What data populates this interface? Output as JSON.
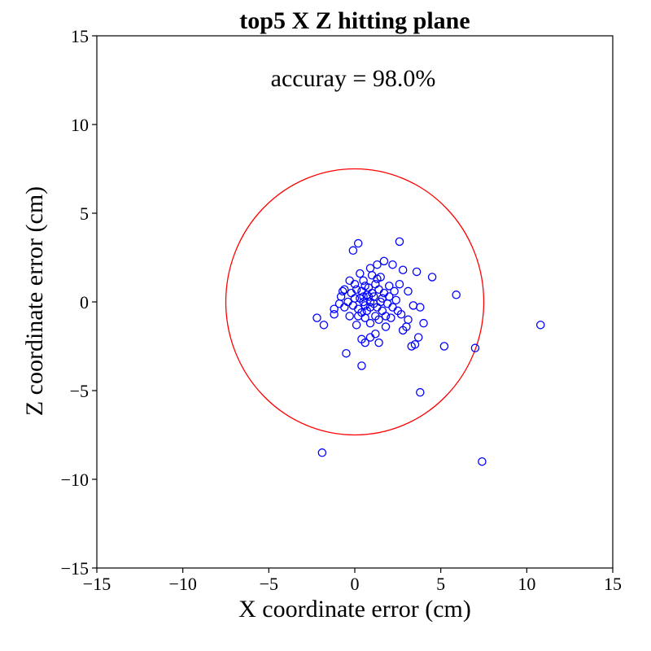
{
  "chart_data": {
    "type": "scatter",
    "title": "top5 X Z hitting plane",
    "annotation": "accuray = 98.0%",
    "xlabel": "X coordinate error (cm)",
    "ylabel": "Z coordinate error (cm)",
    "xlim": [
      -15,
      15
    ],
    "ylim": [
      -15,
      15
    ],
    "xticks": [
      -15,
      -10,
      -5,
      0,
      5,
      10,
      15
    ],
    "yticks": [
      -15,
      -10,
      -5,
      0,
      5,
      10,
      15
    ],
    "xtick_labels": [
      "−15",
      "−10",
      "−5",
      "0",
      "5",
      "10",
      "15"
    ],
    "ytick_labels": [
      "−15",
      "−10",
      "−5",
      "0",
      "5",
      "10",
      "15"
    ],
    "grid": false,
    "circle": {
      "center": [
        0,
        0
      ],
      "radius": 7.5,
      "color": "#ff0000"
    },
    "marker": {
      "shape": "open-circle",
      "color": "#0000ff"
    },
    "points": [
      [
        0.2,
        3.3
      ],
      [
        -0.1,
        2.9
      ],
      [
        2.6,
        3.4
      ],
      [
        1.7,
        2.3
      ],
      [
        2.2,
        2.1
      ],
      [
        1.3,
        2.1
      ],
      [
        0.9,
        1.9
      ],
      [
        2.8,
        1.8
      ],
      [
        3.6,
        1.7
      ],
      [
        4.5,
        1.4
      ],
      [
        0.3,
        1.6
      ],
      [
        1.0,
        1.5
      ],
      [
        1.5,
        1.4
      ],
      [
        0.5,
        1.2
      ],
      [
        -0.3,
        1.2
      ],
      [
        2.6,
        1.0
      ],
      [
        2.0,
        0.9
      ],
      [
        1.2,
        1.0
      ],
      [
        0.6,
        0.9
      ],
      [
        -0.6,
        0.7
      ],
      [
        -0.2,
        0.5
      ],
      [
        0.4,
        0.6
      ],
      [
        1.4,
        0.7
      ],
      [
        2.3,
        0.6
      ],
      [
        3.1,
        0.6
      ],
      [
        5.9,
        0.4
      ],
      [
        -0.8,
        0.3
      ],
      [
        0.0,
        0.2
      ],
      [
        0.8,
        0.3
      ],
      [
        1.6,
        0.2
      ],
      [
        2.4,
        0.1
      ],
      [
        -0.4,
        0.0
      ],
      [
        0.5,
        0.0
      ],
      [
        1.1,
        -0.1
      ],
      [
        1.9,
        -0.1
      ],
      [
        3.4,
        -0.2
      ],
      [
        3.8,
        -0.3
      ],
      [
        -1.2,
        -0.4
      ],
      [
        -0.6,
        -0.3
      ],
      [
        0.2,
        -0.4
      ],
      [
        0.9,
        -0.3
      ],
      [
        1.6,
        -0.5
      ],
      [
        2.5,
        -0.5
      ],
      [
        2.7,
        -0.7
      ],
      [
        -1.2,
        -0.7
      ],
      [
        -0.3,
        -0.8
      ],
      [
        0.6,
        -0.9
      ],
      [
        1.2,
        -0.8
      ],
      [
        2.1,
        -0.9
      ],
      [
        3.1,
        -1.0
      ],
      [
        -2.2,
        -0.9
      ],
      [
        -1.8,
        -1.3
      ],
      [
        0.1,
        -1.3
      ],
      [
        0.9,
        -1.2
      ],
      [
        1.8,
        -1.4
      ],
      [
        3.0,
        -1.4
      ],
      [
        4.0,
        -1.2
      ],
      [
        1.2,
        -1.8
      ],
      [
        2.8,
        -1.6
      ],
      [
        0.4,
        -2.1
      ],
      [
        0.9,
        -2.0
      ],
      [
        3.7,
        -2.0
      ],
      [
        0.6,
        -2.3
      ],
      [
        1.4,
        -2.3
      ],
      [
        3.3,
        -2.5
      ],
      [
        5.2,
        -2.5
      ],
      [
        7.0,
        -2.6
      ],
      [
        3.5,
        -2.4
      ],
      [
        -0.5,
        -2.9
      ],
      [
        0.4,
        -3.6
      ],
      [
        3.8,
        -5.1
      ],
      [
        10.8,
        -1.3
      ],
      [
        -1.9,
        -8.5
      ],
      [
        7.4,
        -9.0
      ],
      [
        0.7,
        0.4
      ],
      [
        0.9,
        0.0
      ],
      [
        0.3,
        0.2
      ],
      [
        1.0,
        0.5
      ],
      [
        0.6,
        -0.2
      ],
      [
        1.3,
        -0.3
      ],
      [
        0.1,
        0.7
      ],
      [
        0.8,
        0.8
      ],
      [
        1.5,
        0.0
      ],
      [
        0.4,
        -0.6
      ],
      [
        1.7,
        0.5
      ],
      [
        -0.1,
        -0.2
      ],
      [
        1.1,
        0.3
      ],
      [
        0.2,
        -0.8
      ],
      [
        1.4,
        -1.0
      ],
      [
        0.7,
        -0.5
      ],
      [
        -0.7,
        0.6
      ],
      [
        2.0,
        0.3
      ],
      [
        1.3,
        1.3
      ],
      [
        0.5,
        0.3
      ],
      [
        1.8,
        -0.8
      ],
      [
        -0.9,
        -0.1
      ],
      [
        2.2,
        -0.3
      ],
      [
        0.0,
        1.0
      ]
    ]
  }
}
